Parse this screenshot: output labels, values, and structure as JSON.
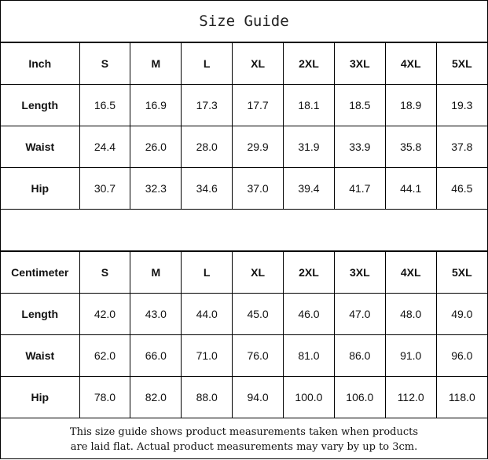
{
  "title": "Size Guide",
  "sizes": [
    "S",
    "M",
    "L",
    "XL",
    "2XL",
    "3XL",
    "4XL",
    "5XL"
  ],
  "inch": {
    "unit_label": "Inch",
    "rows": [
      {
        "label": "Length",
        "values": [
          "16.5",
          "16.9",
          "17.3",
          "17.7",
          "18.1",
          "18.5",
          "18.9",
          "19.3"
        ]
      },
      {
        "label": "Waist",
        "values": [
          "24.4",
          "26.0",
          "28.0",
          "29.9",
          "31.9",
          "33.9",
          "35.8",
          "37.8"
        ]
      },
      {
        "label": "Hip",
        "values": [
          "30.7",
          "32.3",
          "34.6",
          "37.0",
          "39.4",
          "41.7",
          "44.1",
          "46.5"
        ]
      }
    ]
  },
  "cm": {
    "unit_label": "Centimeter",
    "rows": [
      {
        "label": "Length",
        "values": [
          "42.0",
          "43.0",
          "44.0",
          "45.0",
          "46.0",
          "47.0",
          "48.0",
          "49.0"
        ]
      },
      {
        "label": "Waist",
        "values": [
          "62.0",
          "66.0",
          "71.0",
          "76.0",
          "81.0",
          "86.0",
          "91.0",
          "96.0"
        ]
      },
      {
        "label": "Hip",
        "values": [
          "78.0",
          "82.0",
          "88.0",
          "94.0",
          "100.0",
          "106.0",
          "112.0",
          "118.0"
        ]
      }
    ]
  },
  "note": {
    "line1": "This size guide shows product measurements taken when products",
    "line2": "are laid flat. Actual product measurements may vary by up to 3cm."
  }
}
